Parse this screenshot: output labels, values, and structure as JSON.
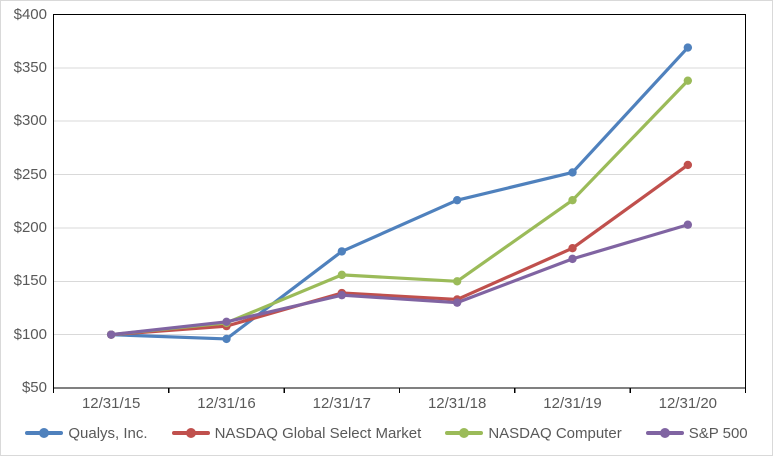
{
  "chart_data": {
    "type": "line",
    "title": "",
    "categories": [
      "12/31/15",
      "12/31/16",
      "12/31/17",
      "12/31/18",
      "12/31/19",
      "12/31/20"
    ],
    "series": [
      {
        "name": "Qualys, Inc.",
        "color": "#4F81BD",
        "values": [
          100,
          96,
          178,
          226,
          252,
          369
        ]
      },
      {
        "name": "NASDAQ Global Select Market",
        "color": "#C0504D",
        "values": [
          100,
          108,
          139,
          133,
          181,
          259
        ]
      },
      {
        "name": "NASDAQ Computer",
        "color": "#9BBB59",
        "values": [
          100,
          111,
          156,
          150,
          226,
          338
        ]
      },
      {
        "name": "S&P 500",
        "color": "#8064A2",
        "values": [
          100,
          112,
          137,
          130,
          171,
          203
        ]
      }
    ],
    "y_axis": {
      "min": 50,
      "max": 400,
      "step": 50,
      "tick_prefix": "$",
      "labels": [
        "$400",
        "$350",
        "$300",
        "$250",
        "$200",
        "$150",
        "$100",
        "$50"
      ]
    },
    "legend_position": "bottom",
    "grid": true,
    "styles": {
      "axis_color": "#000000",
      "gridline_color": "#D9D9D9",
      "label_color": "#595959",
      "background": "#FFFFFF",
      "frame_border_color": "#D9D9D9"
    }
  }
}
